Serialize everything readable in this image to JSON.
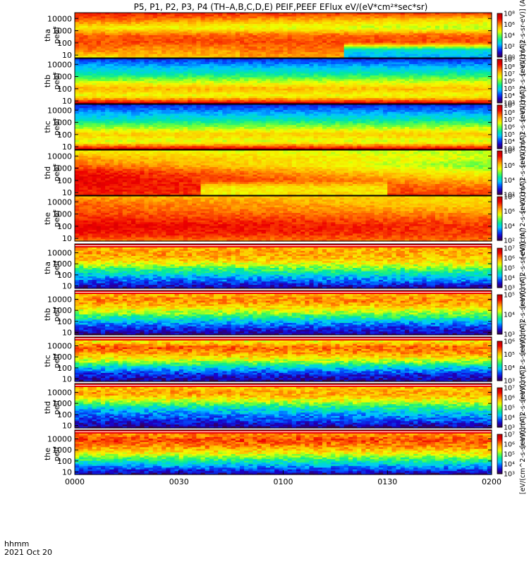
{
  "chart_data": {
    "type": "heatmap",
    "title": "P5, P1, P2, P3, P4 (TH–A,B,C,D,E) PEIF,PEEF EFlux eV/(eV*cm²*sec*sr)",
    "x_tick_labels": [
      "0000",
      "0030",
      "0100",
      "0130",
      "0200"
    ],
    "x_range": [
      "00:00",
      "02:00"
    ],
    "footer": {
      "line1": "hhmm",
      "line2": "2021 Oct 20"
    },
    "colorbar_label": "[eV/(cm^2-s-sr-eV)] (Aj)",
    "colormap": [
      "#3a0048",
      "#1a00c8",
      "#0050ff",
      "#00c8ff",
      "#00e8a0",
      "#60ff40",
      "#f0ff00",
      "#ffc000",
      "#ff6000",
      "#ee0000",
      "#c00000"
    ],
    "y_scale": "log",
    "y_tick_labels": [
      "10",
      "100",
      "1000",
      "10000"
    ],
    "panels": [
      {
        "label_top": "tha",
        "label_bottom": "peef",
        "instrument": "electron",
        "cbar_ticks": [
          "10⁰",
          "10²",
          "10⁴",
          "10⁶",
          "10⁸"
        ],
        "levels": [
          [
            0.62,
            0.78,
            0.82,
            0.8,
            0.62,
            0.8,
            0.88
          ],
          [
            0.62,
            0.78,
            0.82,
            0.8,
            0.55,
            0.64,
            0.85
          ]
        ],
        "bands": [
          [
            0.1,
            0.4,
            0.72
          ],
          [
            0.4,
            0.65,
            0.78
          ],
          [
            0.65,
            1.0,
            0.1
          ]
        ]
      },
      {
        "label_top": "thb",
        "label_bottom": "peef",
        "instrument": "electron",
        "cbar_ticks": [
          "10³",
          "10⁴",
          "10⁵",
          "10⁶",
          "10⁷",
          "10⁸",
          "10⁹"
        ],
        "levels": [
          [
            0.95,
            0.6,
            0.72,
            0.55,
            0.38,
            0.28,
            0.15
          ],
          [
            0.95,
            0.6,
            0.7,
            0.56,
            0.4,
            0.28,
            0.14
          ]
        ],
        "bands": []
      },
      {
        "label_top": "thc",
        "label_bottom": "peef",
        "instrument": "electron",
        "cbar_ticks": [
          "10³",
          "10⁴",
          "10⁵",
          "10⁶",
          "10⁷",
          "10⁸",
          "10⁹"
        ],
        "levels": [
          [
            0.95,
            0.58,
            0.68,
            0.52,
            0.36,
            0.26,
            0.14
          ],
          [
            0.95,
            0.58,
            0.68,
            0.55,
            0.38,
            0.26,
            0.14
          ]
        ],
        "bands": []
      },
      {
        "label_top": "thd",
        "label_bottom": "peef",
        "instrument": "electron",
        "cbar_ticks": [
          "10²",
          "10⁴",
          "10⁶",
          "10⁸"
        ],
        "levels": [
          [
            0.85,
            0.9,
            0.92,
            0.9,
            0.8,
            0.72,
            0.62
          ],
          [
            0.85,
            0.78,
            0.7,
            0.6,
            0.5,
            0.58,
            0.55
          ]
        ],
        "bands": [
          [
            0.3,
            0.5,
            0.5
          ],
          [
            0.5,
            0.75,
            0.55
          ]
        ]
      },
      {
        "label_top": "the",
        "label_bottom": "peef",
        "instrument": "electron",
        "cbar_ticks": [
          "10²",
          "10⁴",
          "10⁶",
          "10⁸"
        ],
        "levels": [
          [
            0.78,
            0.88,
            0.92,
            0.86,
            0.82,
            0.8,
            0.72
          ],
          [
            0.78,
            0.84,
            0.84,
            0.8,
            0.72,
            0.66,
            0.65
          ]
        ],
        "bands": []
      },
      {
        "label_top": "tha",
        "label_bottom": "peif",
        "instrument": "ion",
        "cbar_ticks": [
          "10³",
          "10⁴",
          "10⁵",
          "10⁶",
          "10⁷"
        ],
        "levels": [
          [
            0.06,
            0.18,
            0.32,
            0.48,
            0.66,
            0.74,
            0.7
          ],
          [
            0.06,
            0.22,
            0.36,
            0.52,
            0.66,
            0.72,
            0.7
          ]
        ],
        "bands": []
      },
      {
        "label_top": "thb",
        "label_bottom": "peif",
        "instrument": "ion",
        "cbar_ticks": [
          "10³",
          "10⁴",
          "10⁵"
        ],
        "levels": [
          [
            0.06,
            0.16,
            0.3,
            0.5,
            0.66,
            0.76,
            0.7
          ],
          [
            0.06,
            0.16,
            0.3,
            0.5,
            0.66,
            0.76,
            0.7
          ]
        ],
        "bands": []
      },
      {
        "label_top": "thc",
        "label_bottom": "peif",
        "instrument": "ion",
        "cbar_ticks": [
          "10³",
          "10⁴",
          "10⁵",
          "10⁶"
        ],
        "levels": [
          [
            0.06,
            0.14,
            0.32,
            0.56,
            0.72,
            0.82,
            0.6
          ],
          [
            0.06,
            0.14,
            0.32,
            0.56,
            0.72,
            0.8,
            0.6
          ]
        ],
        "bands": []
      },
      {
        "label_top": "thd",
        "label_bottom": "peif",
        "instrument": "ion",
        "cbar_ticks": [
          "10³",
          "10⁴",
          "10⁵",
          "10⁶",
          "10⁷"
        ],
        "levels": [
          [
            0.04,
            0.14,
            0.22,
            0.34,
            0.58,
            0.74,
            0.68
          ],
          [
            0.04,
            0.2,
            0.3,
            0.44,
            0.62,
            0.72,
            0.68
          ]
        ],
        "bands": []
      },
      {
        "label_top": "the",
        "label_bottom": "peif",
        "instrument": "ion",
        "cbar_ticks": [
          "10³",
          "10⁴",
          "10⁵",
          "10⁶",
          "10⁷"
        ],
        "levels": [
          [
            0.06,
            0.22,
            0.4,
            0.6,
            0.74,
            0.84,
            0.74
          ],
          [
            0.06,
            0.24,
            0.42,
            0.6,
            0.74,
            0.82,
            0.74
          ]
        ],
        "bands": []
      }
    ]
  }
}
